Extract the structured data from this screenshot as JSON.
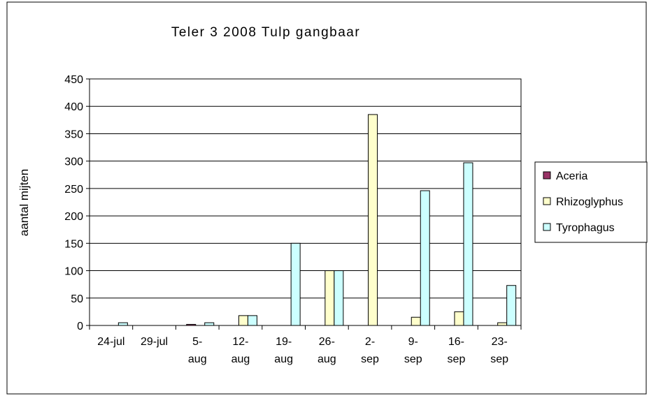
{
  "chart_data": {
    "type": "bar",
    "title": "Teler 3 2008 Tulp gangbaar",
    "y_label": "aantal mijten",
    "categories": [
      "24-jul",
      "29-jul",
      "5- aug",
      "12- aug",
      "19- aug",
      "26- aug",
      "2- sep",
      "9- sep",
      "16- sep",
      "23- sep"
    ],
    "series": [
      {
        "name": "Aceria",
        "color": "#993366",
        "values": [
          0,
          0,
          2,
          0,
          0,
          0,
          0,
          0,
          0,
          0
        ]
      },
      {
        "name": "Rhizoglyphus",
        "color": "#ffffcc",
        "values": [
          0,
          0,
          0,
          18,
          0,
          100,
          385,
          15,
          25,
          5
        ]
      },
      {
        "name": "Tyrophagus",
        "color": "#ccffff",
        "values": [
          5,
          0,
          5,
          18,
          150,
          100,
          0,
          246,
          297,
          73
        ]
      }
    ],
    "ylim": [
      0,
      450
    ],
    "yticks": [
      0,
      50,
      100,
      150,
      200,
      250,
      300,
      350,
      400,
      450
    ],
    "grid": true,
    "legend": "right"
  }
}
